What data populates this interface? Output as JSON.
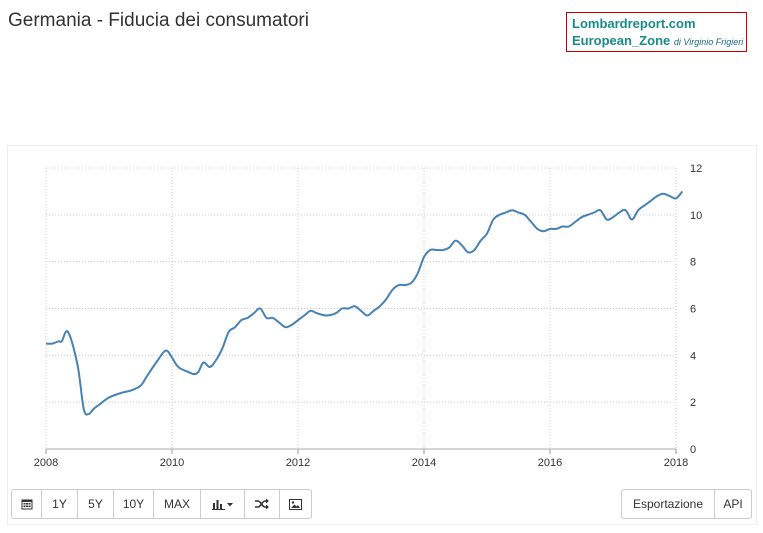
{
  "page": {
    "title": "Germania - Fiducia dei consumatori"
  },
  "brand": {
    "site": "Lombardreport.com",
    "section": "European_Zone",
    "byline": "di Virginio Frigieri",
    "border_color": "#cc0000",
    "text_color": "#1a8a8a"
  },
  "toolbar": {
    "calendar_icon": "calendar-icon",
    "range_1y": "1Y",
    "range_5y": "5Y",
    "range_10y": "10Y",
    "range_max": "MAX",
    "chart_type_icon": "bar-chart-icon",
    "compare_icon": "shuffle-icon",
    "image_icon": "image-icon",
    "export_label": "Esportazione",
    "api_label": "API"
  },
  "chart_data": {
    "type": "line",
    "title": "Germania - Fiducia dei consumatori",
    "xlabel": "",
    "ylabel": "",
    "xlim": [
      2008.0,
      2018.0
    ],
    "ylim": [
      0,
      12
    ],
    "x_ticks": [
      "2008",
      "2010",
      "2012",
      "2014",
      "2016",
      "2018"
    ],
    "y_ticks": [
      "0",
      "2",
      "4",
      "6",
      "8",
      "10",
      "12"
    ],
    "y_axis_position": "right",
    "grid": true,
    "line_color": "#4682b4",
    "series": [
      {
        "x": [
          2008.0,
          2008.1,
          2008.2,
          2008.25,
          2008.35,
          2008.5,
          2008.6,
          2008.68,
          2008.75,
          2008.85,
          2009.0,
          2009.2,
          2009.35,
          2009.5,
          2009.6,
          2009.75,
          2009.9,
          2010.0,
          2010.1,
          2010.25,
          2010.35,
          2010.42,
          2010.5,
          2010.6,
          2010.7,
          2010.8,
          2010.9,
          2011.0,
          2011.1,
          2011.2,
          2011.3,
          2011.4,
          2011.5,
          2011.6,
          2011.7,
          2011.8,
          2011.9,
          2012.0,
          2012.1,
          2012.2,
          2012.3,
          2012.45,
          2012.6,
          2012.7,
          2012.8,
          2012.9,
          2013.0,
          2013.1,
          2013.2,
          2013.3,
          2013.4,
          2013.5,
          2013.6,
          2013.7,
          2013.8,
          2013.9,
          2014.0,
          2014.1,
          2014.2,
          2014.3,
          2014.4,
          2014.5,
          2014.6,
          2014.7,
          2014.8,
          2014.9,
          2015.0,
          2015.1,
          2015.2,
          2015.3,
          2015.4,
          2015.5,
          2015.6,
          2015.7,
          2015.8,
          2015.9,
          2016.0,
          2016.1,
          2016.2,
          2016.3,
          2016.4,
          2016.5,
          2016.6,
          2016.7,
          2016.8,
          2016.9,
          2017.0,
          2017.1,
          2017.2,
          2017.3,
          2017.4,
          2017.5,
          2017.6,
          2017.7,
          2017.8,
          2017.9,
          2018.0,
          2018.1
        ],
        "y": [
          4.5,
          4.5,
          4.6,
          4.6,
          5.0,
          3.6,
          1.7,
          1.5,
          1.7,
          1.9,
          2.2,
          2.4,
          2.5,
          2.7,
          3.1,
          3.7,
          4.2,
          3.9,
          3.5,
          3.3,
          3.2,
          3.3,
          3.7,
          3.5,
          3.8,
          4.3,
          5.0,
          5.2,
          5.5,
          5.6,
          5.8,
          6.0,
          5.6,
          5.6,
          5.4,
          5.2,
          5.3,
          5.5,
          5.7,
          5.9,
          5.8,
          5.7,
          5.8,
          6.0,
          6.0,
          6.1,
          5.9,
          5.7,
          5.9,
          6.1,
          6.4,
          6.8,
          7.0,
          7.0,
          7.1,
          7.5,
          8.2,
          8.5,
          8.5,
          8.5,
          8.6,
          8.9,
          8.7,
          8.4,
          8.5,
          8.9,
          9.2,
          9.8,
          10.0,
          10.1,
          10.2,
          10.1,
          10.0,
          9.7,
          9.4,
          9.3,
          9.4,
          9.4,
          9.5,
          9.5,
          9.7,
          9.9,
          10.0,
          10.1,
          10.2,
          9.8,
          9.9,
          10.1,
          10.2,
          9.8,
          10.2,
          10.4,
          10.6,
          10.8,
          10.9,
          10.8,
          10.7,
          11.0
        ]
      }
    ]
  }
}
